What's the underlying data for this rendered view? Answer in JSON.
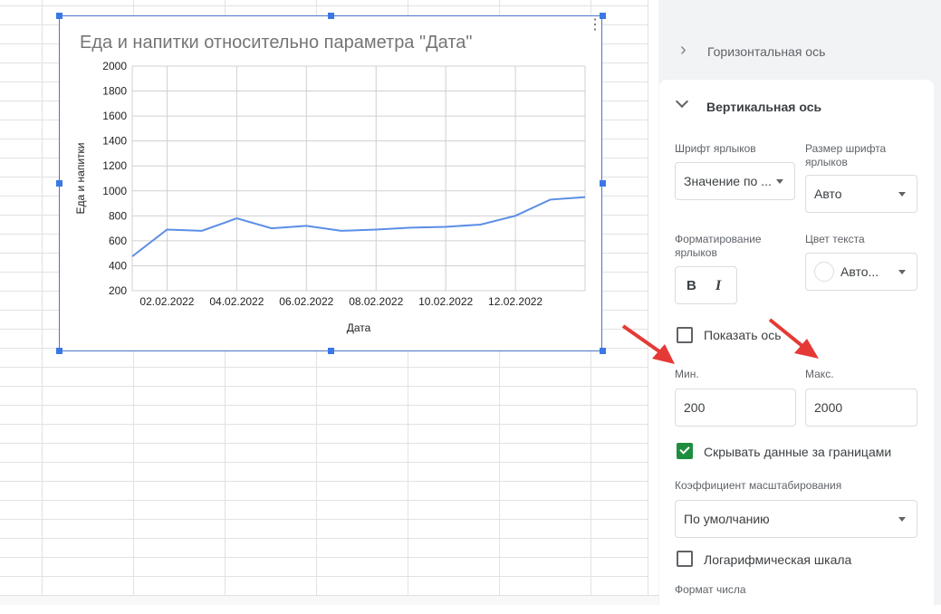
{
  "chart_data": {
    "type": "line",
    "title": "Еда и напитки относительно параметра \"Дата\"",
    "xlabel": "Дата",
    "ylabel": "Еда и напитки",
    "ylim": [
      200,
      2000
    ],
    "yticks": [
      "2000",
      "1800",
      "1600",
      "1400",
      "1200",
      "1000",
      "800",
      "600",
      "400",
      "200"
    ],
    "xticks": [
      "02.02.2022",
      "04.02.2022",
      "06.02.2022",
      "08.02.2022",
      "10.02.2022",
      "12.02.2022"
    ],
    "x": [
      "01.02.2022",
      "02.02.2022",
      "03.02.2022",
      "04.02.2022",
      "05.02.2022",
      "06.02.2022",
      "07.02.2022",
      "08.02.2022",
      "09.02.2022",
      "10.02.2022",
      "11.02.2022",
      "12.02.2022",
      "13.02.2022",
      "14.02.2022"
    ],
    "series": [
      {
        "values": [
          475,
          690,
          680,
          780,
          700,
          720,
          680,
          690,
          705,
          712,
          730,
          800,
          930,
          950
        ],
        "color": "#5b8ee6"
      }
    ],
    "grid": true
  },
  "panel": {
    "horizontal_axis": "Горизонтальная ось",
    "vertical_axis": "Вертикальная ось",
    "label_font": "Шрифт ярлыков",
    "label_font_value": "Значение по ...",
    "label_size": "Размер шрифта ярлыков",
    "label_size_value": "Авто",
    "label_format": "Форматирование ярлыков",
    "bold": "B",
    "italic": "I",
    "text_color": "Цвет текста",
    "text_color_value": "Авто...",
    "show_axis": "Показать ось",
    "min_label": "Мин.",
    "min_value": "200",
    "max_label": "Макс.",
    "max_value": "2000",
    "hide_out_of_bounds": "Скрывать данные за границами",
    "scale_factor": "Коэффициент масштабирования",
    "scale_factor_value": "По умолчанию",
    "log_scale": "Логарифмическая шкала",
    "number_format": "Формат числа"
  }
}
